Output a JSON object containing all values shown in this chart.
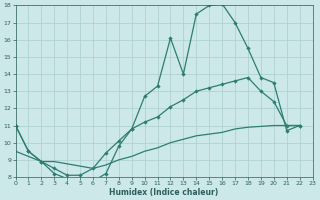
{
  "xlabel": "Humidex (Indice chaleur)",
  "xlim": [
    0,
    23
  ],
  "ylim": [
    8,
    18
  ],
  "yticks": [
    8,
    9,
    10,
    11,
    12,
    13,
    14,
    15,
    16,
    17,
    18
  ],
  "xticks": [
    0,
    1,
    2,
    3,
    4,
    5,
    6,
    7,
    8,
    9,
    10,
    11,
    12,
    13,
    14,
    15,
    16,
    17,
    18,
    19,
    20,
    21,
    22,
    23
  ],
  "background_color": "#cce8e8",
  "line_color": "#2e7d72",
  "grid_color": "#aacece",
  "font_color": "#2e5f5f",
  "line1_x": [
    0,
    1,
    2,
    3,
    4,
    5,
    6,
    7,
    8,
    9,
    10,
    11,
    12,
    13,
    14,
    15,
    16,
    17,
    18,
    19,
    20,
    21,
    22
  ],
  "line1_y": [
    11.0,
    9.5,
    8.9,
    8.2,
    7.9,
    7.7,
    7.75,
    8.2,
    9.8,
    10.8,
    12.7,
    13.3,
    16.1,
    14.0,
    17.5,
    18.0,
    18.1,
    17.0,
    15.5,
    13.8,
    13.5,
    10.7,
    11.0
  ],
  "line2_x": [
    0,
    1,
    2,
    3,
    4,
    5,
    6,
    7,
    8,
    9,
    10,
    11,
    12,
    13,
    14,
    15,
    16,
    17,
    18,
    19,
    20,
    21,
    22
  ],
  "line2_y": [
    11.0,
    9.5,
    8.9,
    8.5,
    8.1,
    8.1,
    8.5,
    9.4,
    10.1,
    10.8,
    11.2,
    11.5,
    12.1,
    12.5,
    13.0,
    13.2,
    13.4,
    13.6,
    13.8,
    13.0,
    12.4,
    11.0,
    11.0
  ],
  "line3_x": [
    0,
    2,
    3,
    6,
    7,
    8,
    9,
    10,
    11,
    12,
    13,
    14,
    15,
    16,
    17,
    18,
    19,
    20,
    21,
    22
  ],
  "line3_y": [
    9.5,
    8.9,
    8.9,
    8.5,
    8.7,
    9.0,
    9.2,
    9.5,
    9.7,
    10.0,
    10.2,
    10.4,
    10.5,
    10.6,
    10.8,
    10.9,
    10.95,
    11.0,
    11.0,
    11.0
  ]
}
